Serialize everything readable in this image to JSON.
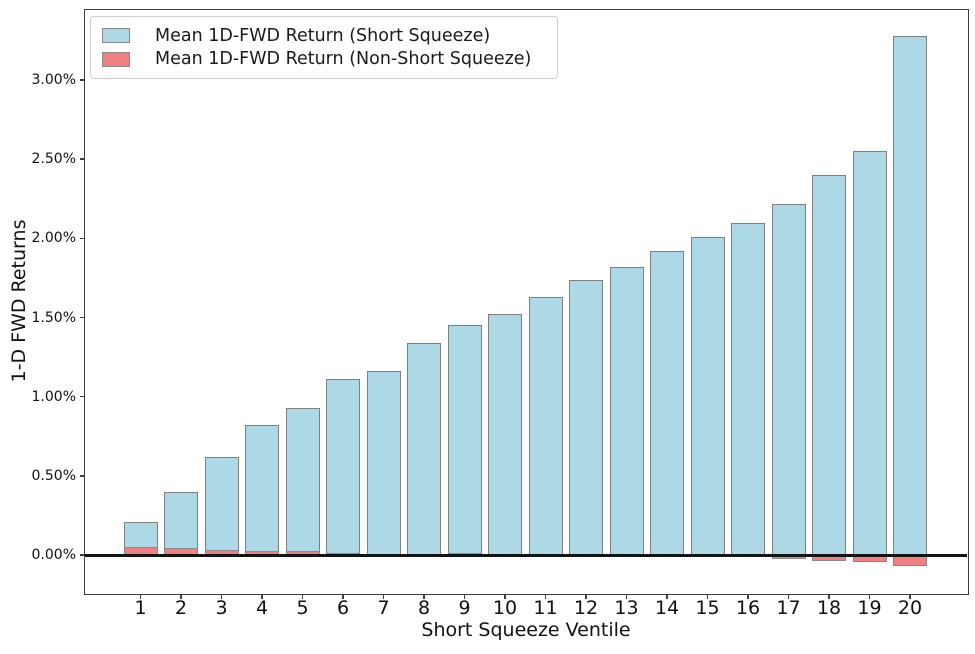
{
  "chart_data": {
    "type": "bar",
    "title": "",
    "xlabel": "Short Squeeze Ventile",
    "ylabel": "1-D FWD Returns",
    "categories": [
      "1",
      "2",
      "3",
      "4",
      "5",
      "6",
      "7",
      "8",
      "9",
      "10",
      "11",
      "12",
      "13",
      "14",
      "15",
      "16",
      "17",
      "18",
      "19",
      "20"
    ],
    "series": [
      {
        "name": "Mean 1D-FWD Return (Short Squeeze)",
        "color": "#ADD8E6",
        "edge_color": "#7f7f7f",
        "values_pct": [
          0.21,
          0.4,
          0.62,
          0.82,
          0.93,
          1.11,
          1.16,
          1.34,
          1.45,
          1.52,
          1.63,
          1.74,
          1.82,
          1.92,
          2.01,
          2.1,
          2.22,
          2.4,
          2.55,
          3.28
        ]
      },
      {
        "name": "Mean 1D-FWD Return (Non-Short Squeeze)",
        "color": "#F08080",
        "edge_color": "#8a8a8a",
        "values_pct": [
          0.05,
          0.042,
          0.034,
          0.026,
          0.024,
          0.015,
          0.006,
          0.004,
          0.012,
          0.008,
          0.004,
          0.003,
          0.003,
          0.003,
          0.003,
          0.002,
          -0.025,
          -0.04,
          -0.046,
          -0.07
        ]
      }
    ],
    "y_ticks": [
      {
        "value": 0.0,
        "label": "0.00%"
      },
      {
        "value": 0.5,
        "label": "0.50%"
      },
      {
        "value": 1.0,
        "label": "1.00%"
      },
      {
        "value": 1.5,
        "label": "1.50%"
      },
      {
        "value": 2.0,
        "label": "2.00%"
      },
      {
        "value": 2.5,
        "label": "2.50%"
      },
      {
        "value": 3.0,
        "label": "3.00%"
      }
    ],
    "ylim_pct": [
      -0.24,
      3.44
    ],
    "grid": false,
    "zero_line": true,
    "legend_position": "upper left"
  }
}
